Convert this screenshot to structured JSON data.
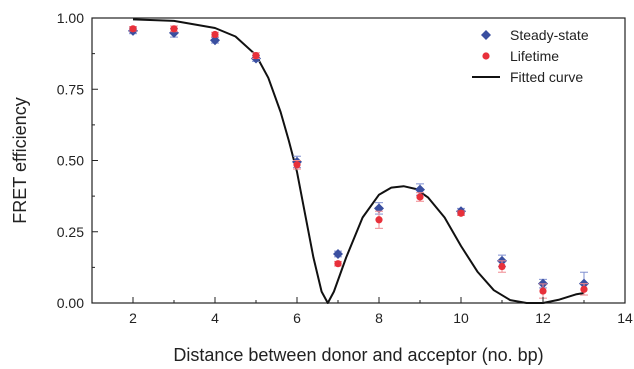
{
  "chart_data": {
    "type": "scatter",
    "xlabel": "Distance between donor and acceptor (no. bp)",
    "ylabel": "FRET efficiency",
    "xlim": [
      1,
      14
    ],
    "ylim": [
      0,
      1.0
    ],
    "x_ticks": [
      2,
      4,
      6,
      8,
      10,
      12,
      14
    ],
    "y_ticks": [
      "0.00",
      "0.25",
      "0.50",
      "0.75",
      "1.00"
    ],
    "legend_position": "top-right",
    "series": [
      {
        "name": "Steady-state",
        "marker": "diamond",
        "color": "#3a4fa0",
        "x": [
          2,
          3,
          4,
          5,
          6,
          7,
          8,
          9,
          10,
          11,
          12,
          13
        ],
        "y": [
          0.955,
          0.948,
          0.922,
          0.858,
          0.495,
          0.172,
          0.332,
          0.398,
          0.322,
          0.148,
          0.068,
          0.068
        ],
        "err": [
          0.01,
          0.015,
          0.01,
          0.01,
          0.02,
          0.01,
          0.02,
          0.02,
          0.01,
          0.02,
          0.015,
          0.04
        ]
      },
      {
        "name": "Lifetime",
        "marker": "circle",
        "color": "#e8303a",
        "x": [
          2,
          3,
          4,
          5,
          6,
          7,
          8,
          9,
          10,
          11,
          12,
          13
        ],
        "y": [
          0.962,
          0.962,
          0.942,
          0.868,
          0.485,
          0.138,
          0.292,
          0.372,
          0.315,
          0.128,
          0.042,
          0.048
        ],
        "err": [
          0.008,
          0.01,
          0.008,
          0.01,
          0.015,
          0.008,
          0.03,
          0.015,
          0.008,
          0.02,
          0.025,
          0.02
        ]
      },
      {
        "name": "Fitted curve",
        "type": "line",
        "color": "#111111",
        "x": [
          2,
          3,
          4,
          4.5,
          5,
          5.3,
          5.6,
          5.8,
          6.0,
          6.2,
          6.4,
          6.6,
          6.75,
          6.9,
          7.2,
          7.6,
          8.0,
          8.3,
          8.6,
          8.9,
          9.2,
          9.6,
          10.0,
          10.4,
          10.8,
          11.2,
          11.6,
          12.0,
          12.4,
          12.8,
          13.0
        ],
        "y": [
          0.995,
          0.99,
          0.965,
          0.935,
          0.87,
          0.79,
          0.67,
          0.57,
          0.46,
          0.31,
          0.16,
          0.04,
          0.0,
          0.04,
          0.16,
          0.3,
          0.38,
          0.405,
          0.41,
          0.4,
          0.37,
          0.3,
          0.2,
          0.11,
          0.045,
          0.01,
          0.0,
          0.0,
          0.012,
          0.03,
          0.035
        ]
      }
    ]
  }
}
